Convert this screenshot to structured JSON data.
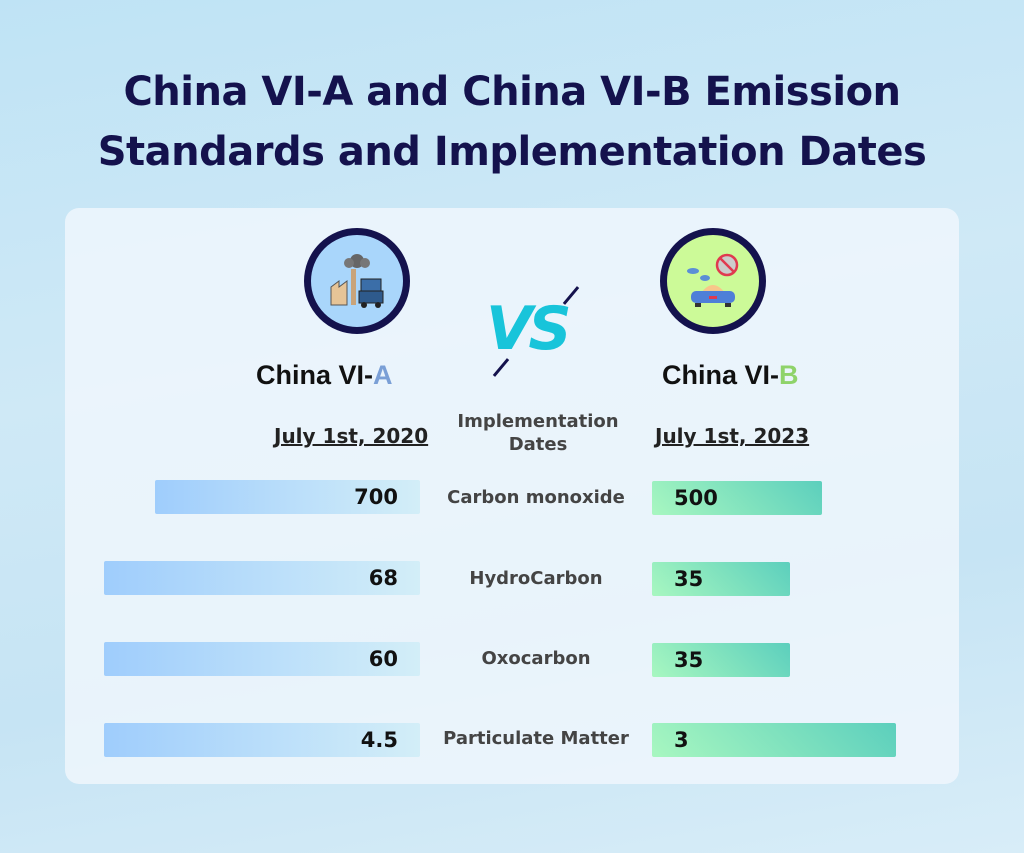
{
  "title_line1": "China VI-A and China VI-B Emission",
  "title_line2": "Standards and Implementation Dates",
  "vs_label": "VS",
  "center_header": {
    "line1": "Implementation",
    "line2": "Dates"
  },
  "left": {
    "name_prefix": "China  VI-",
    "name_suffix": "A",
    "suffix_color": "#7a9fd6",
    "date": "July 1st, 2020",
    "icon": "factory-truck-pollution-icon",
    "badge_color": "#a9d6fb"
  },
  "right": {
    "name_prefix": "China  VI-",
    "name_suffix": "B",
    "suffix_color": "#8fd36a",
    "date": "July 1st, 2023",
    "icon": "car-no-co2-icon",
    "badge_color": "#ccfa98"
  },
  "chart_data": {
    "type": "bar",
    "categories": [
      "Carbon monoxide",
      "HydroCarbon",
      "Oxocarbon",
      "Particulate Matter"
    ],
    "series": [
      {
        "name": "China VI-A",
        "values": [
          700,
          68,
          60,
          4.5
        ],
        "labels": [
          "700",
          "68",
          "60",
          "4.5"
        ],
        "color": "#9fcdfc"
      },
      {
        "name": "China VI-B",
        "values": [
          500,
          35,
          35,
          3
        ],
        "labels": [
          "500",
          "35",
          "35",
          "3"
        ],
        "color": "#5ccfbd"
      }
    ]
  }
}
